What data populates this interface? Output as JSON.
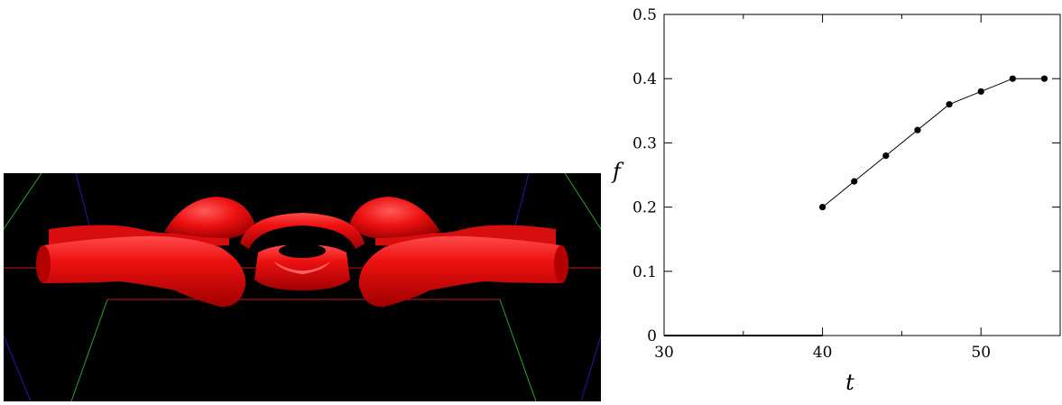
{
  "render": {
    "colors": {
      "background": "#000000",
      "surface": "#ee1111",
      "highlight": "#ff5050",
      "shadow": "#9a0000",
      "guide_red": "#c41a1a",
      "guide_green": "#2aa52a",
      "guide_blue": "#1c1caa"
    }
  },
  "chart_data": {
    "type": "line",
    "x": [
      40,
      42,
      44,
      46,
      48,
      50,
      52,
      54
    ],
    "series": [
      {
        "values": [
          0.2,
          0.24,
          0.28,
          0.32,
          0.36,
          0.38,
          0.4,
          0.4
        ]
      }
    ],
    "baseline_segment": {
      "x": [
        30,
        40
      ],
      "y": [
        0,
        0
      ]
    },
    "xlabel": "t",
    "ylabel": "f",
    "xlim": [
      30,
      55
    ],
    "ylim": [
      0,
      0.5
    ],
    "xticks": [
      30,
      40,
      50
    ],
    "xtick_labels": [
      "30",
      "40",
      "50"
    ],
    "yticks": [
      0,
      0.1,
      0.2,
      0.3,
      0.4,
      0.5
    ],
    "ytick_labels": [
      "0",
      "0.1",
      "0.2",
      "0.3",
      "0.4",
      "0.5"
    ],
    "grid": false,
    "marker": "filled-circle",
    "color": "#000000"
  }
}
